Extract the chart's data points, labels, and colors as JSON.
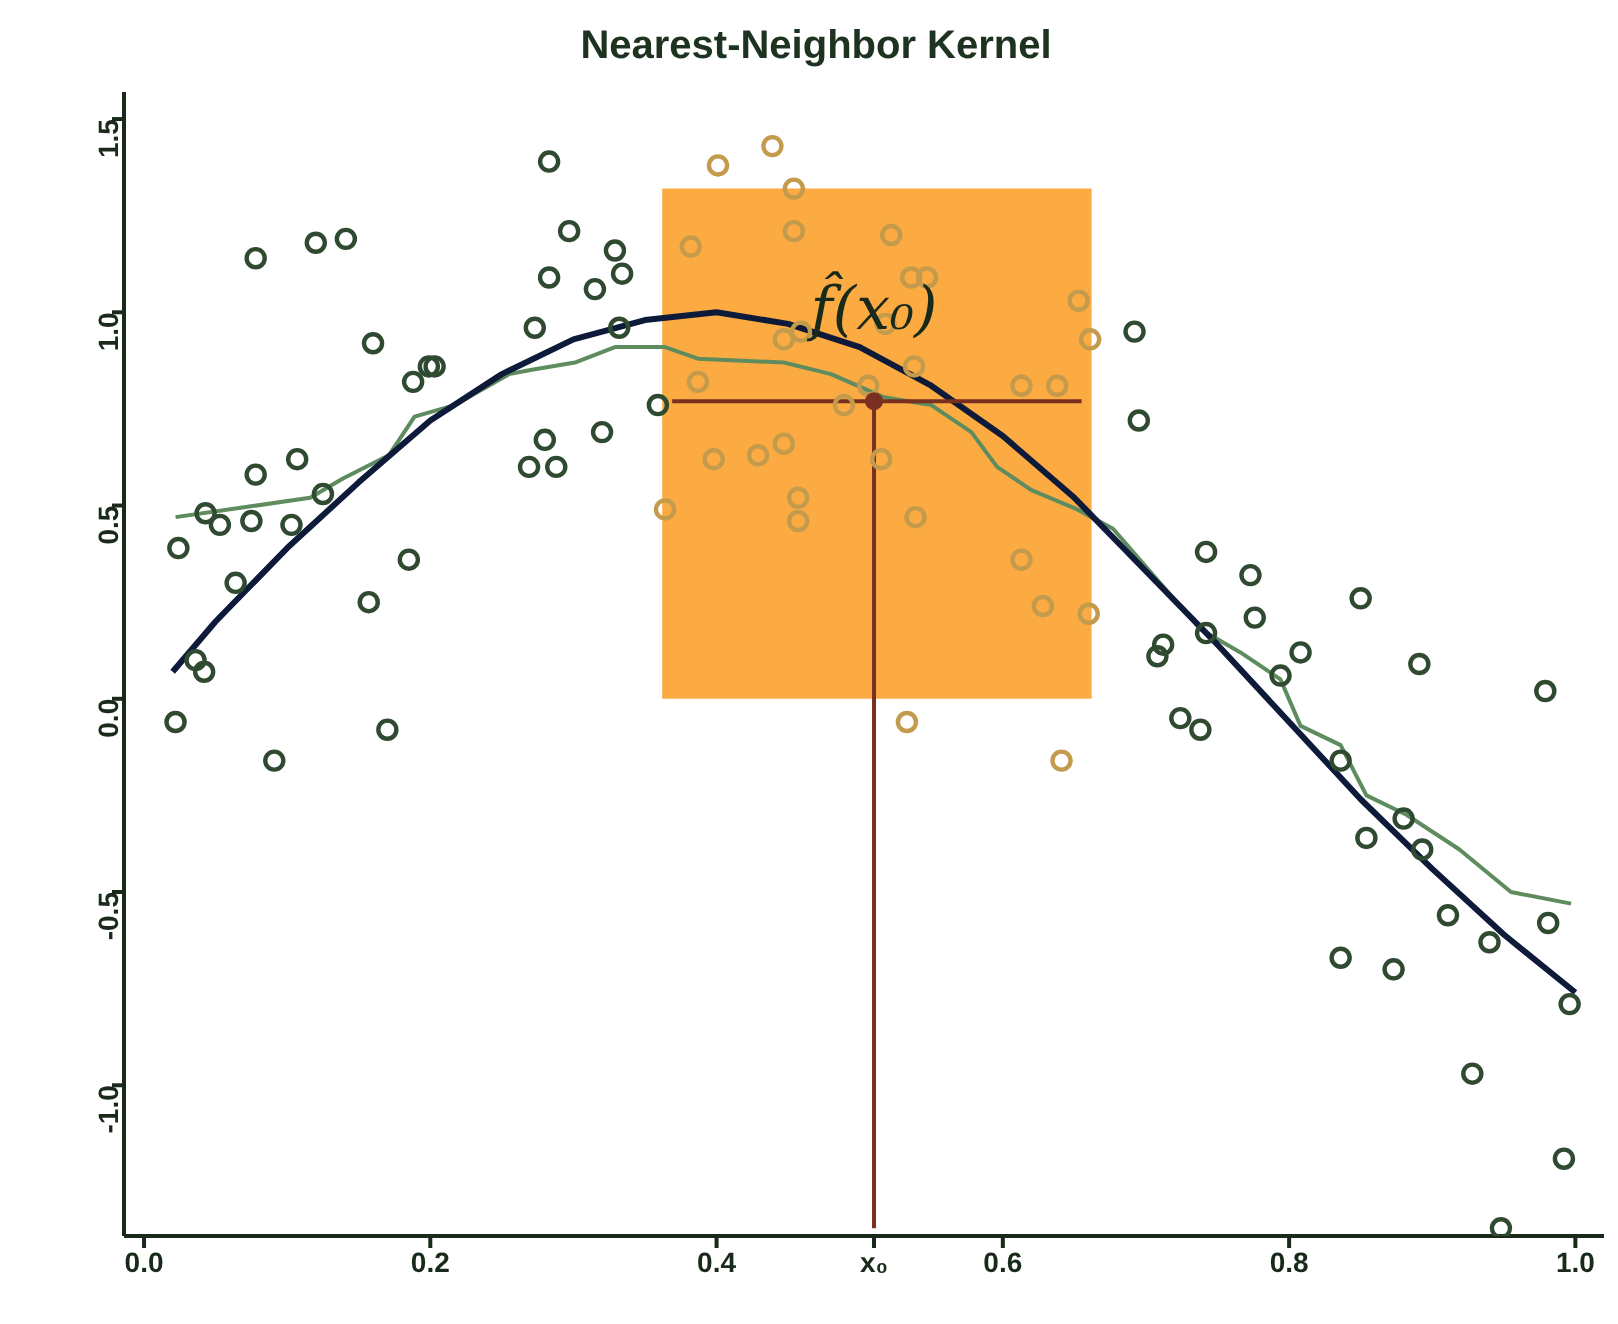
{
  "chart_data": {
    "type": "scatter",
    "title": "Nearest-Neighbor Kernel",
    "grid": false,
    "xlim": [
      -0.014,
      1.02
    ],
    "ylim": [
      -1.39,
      1.57
    ],
    "xticks": [
      {
        "value": 0,
        "label": "0.0"
      },
      0.2,
      0.4,
      {
        "value": 0.51,
        "label": "x₀"
      },
      0.6,
      0.8,
      {
        "value": 1,
        "label": "1.0"
      }
    ],
    "yticks": [
      {
        "value": -1,
        "label": "-1.0"
      },
      {
        "value": -0.5,
        "label": "-0.5"
      },
      {
        "value": 0,
        "label": "0.0"
      },
      {
        "value": 0.5,
        "label": "0.5"
      },
      {
        "value": 1,
        "label": "1.0"
      },
      {
        "value": 1.5,
        "label": "1.5"
      }
    ],
    "annotations": [
      {
        "text": "f̂(x₀)",
        "x": 0.51,
        "y": 0.77
      }
    ],
    "series": [
      {
        "type": "area",
        "color": "#fbab41",
        "x": [
          0.362,
          0.662
        ],
        "values": [
          1.32,
          1.32
        ]
      },
      {
        "marker": "circle",
        "x": [
          0.022,
          0.024,
          0.036,
          0.042,
          0.043,
          0.053,
          0.064,
          0.075,
          0.078,
          0.078,
          0.091,
          0.103,
          0.107,
          0.12,
          0.141,
          0.125,
          0.157,
          0.16,
          0.17,
          0.185,
          0.188,
          0.199,
          0.203,
          0.269,
          0.28,
          0.288,
          0.273,
          0.283,
          0.283,
          0.297,
          0.315,
          0.32,
          0.329,
          0.334,
          0.332,
          0.359,
          0.364,
          0.382,
          0.387,
          0.398,
          0.401,
          0.429,
          0.439,
          0.447,
          0.447,
          0.454,
          0.454,
          0.457,
          0.457,
          0.459,
          0.489,
          0.506,
          0.515,
          0.518,
          0.522,
          0.533,
          0.536,
          0.538,
          0.539,
          0.547,
          0.613,
          0.613,
          0.628,
          0.638,
          0.641,
          0.653,
          0.66,
          0.661,
          0.692,
          0.695,
          0.708,
          0.712,
          0.724,
          0.738,
          0.742,
          0.742,
          0.773,
          0.776,
          0.794,
          0.808,
          0.836,
          0.836,
          0.85,
          0.854,
          0.873,
          0.88,
          0.891,
          0.893,
          0.911,
          0.928,
          0.94,
          0.948,
          0.979,
          0.981,
          0.992,
          0.996
        ],
        "values": [
          -0.06,
          0.39,
          0.1,
          0.07,
          0.48,
          0.45,
          0.3,
          0.46,
          0.58,
          1.14,
          -0.16,
          0.45,
          0.62,
          1.18,
          1.19,
          0.53,
          0.25,
          0.92,
          -0.08,
          0.36,
          0.82,
          0.86,
          0.86,
          0.6,
          0.67,
          0.6,
          0.96,
          1.09,
          1.39,
          1.21,
          1.06,
          0.69,
          1.16,
          1.1,
          0.96,
          0.76,
          0.49,
          1.17,
          0.82,
          0.62,
          1.38,
          0.63,
          1.43,
          0.66,
          0.93,
          1.32,
          1.21,
          0.52,
          0.46,
          0.95,
          0.76,
          0.81,
          0.62,
          0.97,
          1.2,
          -0.06,
          1.09,
          0.86,
          0.47,
          1.09,
          0.81,
          0.36,
          0.24,
          0.81,
          -0.16,
          1.03,
          0.22,
          0.93,
          0.95,
          0.72,
          0.11,
          0.14,
          -0.05,
          -0.08,
          0.38,
          0.17,
          0.32,
          0.21,
          0.06,
          0.12,
          -0.16,
          -0.67,
          0.26,
          -0.36,
          -0.7,
          -0.31,
          0.09,
          -0.39,
          -0.56,
          -0.97,
          -0.63,
          -1.37,
          0.02,
          -0.58,
          -1.19,
          -0.79
        ],
        "colors": [
          "#2f4a30",
          "#2f4a30",
          "#2f4a30",
          "#2f4a30",
          "#2f4a30",
          "#2f4a30",
          "#2f4a30",
          "#2f4a30",
          "#2f4a30",
          "#2f4a30",
          "#2f4a30",
          "#2f4a30",
          "#2f4a30",
          "#2f4a30",
          "#2f4a30",
          "#2f4a30",
          "#2f4a30",
          "#2f4a30",
          "#2f4a30",
          "#2f4a30",
          "#2f4a30",
          "#2f4a30",
          "#2f4a30",
          "#2f4a30",
          "#2f4a30",
          "#2f4a30",
          "#2f4a30",
          "#2f4a30",
          "#2f4a30",
          "#2f4a30",
          "#2f4a30",
          "#2f4a30",
          "#2f4a30",
          "#2f4a30",
          "#2f4a30",
          "#2f4a30",
          "#c49a4c",
          "#c49a4c",
          "#c49a4c",
          "#c49a4c",
          "#c49a4c",
          "#c49a4c",
          "#c49a4c",
          "#c49a4c",
          "#c49a4c",
          "#c49a4c",
          "#c49a4c",
          "#c49a4c",
          "#c49a4c",
          "#c49a4c",
          "#c49a4c",
          "#c49a4c",
          "#c49a4c",
          "#c49a4c",
          "#c49a4c",
          "#c49a4c",
          "#c49a4c",
          "#c49a4c",
          "#c49a4c",
          "#c49a4c",
          "#c49a4c",
          "#c49a4c",
          "#c49a4c",
          "#c49a4c",
          "#c49a4c",
          "#c49a4c",
          "#c49a4c",
          "#c49a4c",
          "#2f4a30",
          "#2f4a30",
          "#2f4a30",
          "#2f4a30",
          "#2f4a30",
          "#2f4a30",
          "#2f4a30",
          "#2f4a30",
          "#2f4a30",
          "#2f4a30",
          "#2f4a30",
          "#2f4a30",
          "#2f4a30",
          "#2f4a30",
          "#2f4a30",
          "#2f4a30",
          "#2f4a30",
          "#2f4a30",
          "#2f4a30",
          "#2f4a30",
          "#2f4a30",
          "#2f4a30",
          "#2f4a30",
          "#2f4a30",
          "#2f4a30",
          "#2f4a30",
          "#2f4a30",
          "#2f4a30"
        ]
      },
      {
        "type": "line",
        "color": "#5e8c5e",
        "x": [
          0.022,
          0.116,
          0.139,
          0.171,
          0.189,
          0.217,
          0.255,
          0.269,
          0.301,
          0.329,
          0.364,
          0.387,
          0.447,
          0.48,
          0.517,
          0.55,
          0.578,
          0.596,
          0.62,
          0.652,
          0.677,
          0.705,
          0.738,
          0.766,
          0.794,
          0.808,
          0.836,
          0.854,
          0.882,
          0.919,
          0.955,
          0.997
        ],
        "values": [
          0.47,
          0.52,
          0.57,
          0.63,
          0.73,
          0.76,
          0.84,
          0.85,
          0.87,
          0.91,
          0.91,
          0.88,
          0.87,
          0.84,
          0.78,
          0.76,
          0.69,
          0.6,
          0.54,
          0.49,
          0.44,
          0.32,
          0.18,
          0.12,
          0.05,
          -0.07,
          -0.12,
          -0.25,
          -0.3,
          -0.39,
          -0.5,
          -0.53
        ]
      },
      {
        "type": "line",
        "color": "#0d1a3a",
        "x": [
          0.02,
          0.05,
          0.1,
          0.15,
          0.2,
          0.25,
          0.3,
          0.35,
          0.4,
          0.45,
          0.5,
          0.55,
          0.6,
          0.65,
          0.7,
          0.75,
          0.8,
          0.85,
          0.9,
          0.95,
          1.0
        ],
        "values": [
          0.07,
          0.2,
          0.39,
          0.56,
          0.72,
          0.84,
          0.93,
          0.98,
          1.0,
          0.97,
          0.91,
          0.81,
          0.68,
          0.52,
          0.33,
          0.14,
          -0.06,
          -0.26,
          -0.44,
          -0.61,
          -0.76
        ]
      },
      {
        "type": "line",
        "color": "#7a3020",
        "x": [
          0.369,
          0.655
        ],
        "values": [
          0.77,
          0.77
        ]
      },
      {
        "type": "line",
        "color": "#7a3020",
        "x": [
          0.51,
          0.51
        ],
        "values": [
          -1.37,
          0.77
        ]
      },
      {
        "marker": "circle",
        "color": "#7a3020",
        "x": [
          0.51
        ],
        "values": [
          0.77
        ]
      }
    ]
  }
}
